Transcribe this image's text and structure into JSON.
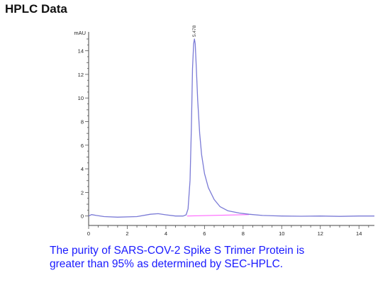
{
  "heading": "HPLC Data",
  "caption": {
    "line1": "The purity of SARS-COV-2 Spike S Trimer Protein is",
    "line2": "greater than 95% as determined by SEC-HPLC."
  },
  "chart_data": {
    "type": "line",
    "title": "",
    "xlabel": "",
    "ylabel": "mAU",
    "xlim": [
      0,
      14.8
    ],
    "ylim": [
      -0.8,
      15.6
    ],
    "x_ticks": [
      0,
      2,
      4,
      6,
      8,
      10,
      12,
      14
    ],
    "y_ticks": [
      0,
      2,
      4,
      6,
      8,
      10,
      12,
      14
    ],
    "peak_label": "5.478",
    "series": [
      {
        "color": "#7a7ad6",
        "x": [
          0,
          0.15,
          0.4,
          0.8,
          1.5,
          2.5,
          3.2,
          3.6,
          4.0,
          4.5,
          4.9,
          5.05,
          5.15,
          5.25,
          5.32,
          5.38,
          5.44,
          5.478,
          5.52,
          5.58,
          5.65,
          5.75,
          5.85,
          6.0,
          6.2,
          6.5,
          6.8,
          7.2,
          7.8,
          8.3,
          9.0,
          10.0,
          11.0,
          12.0,
          13.0,
          14.0,
          14.8
        ],
        "y": [
          0.0,
          0.12,
          0.05,
          -0.05,
          -0.1,
          -0.05,
          0.15,
          0.2,
          0.1,
          0.0,
          0.0,
          0.1,
          0.6,
          3.0,
          7.5,
          12.5,
          14.6,
          15.0,
          14.6,
          12.5,
          9.8,
          7.0,
          5.2,
          3.6,
          2.4,
          1.4,
          0.8,
          0.45,
          0.25,
          0.15,
          0.05,
          0.0,
          -0.02,
          0.0,
          -0.03,
          0.0,
          0.0
        ]
      }
    ],
    "baseline": {
      "color": "#ff66ff",
      "x": [
        5.1,
        8.3
      ],
      "y": [
        0.0,
        0.12
      ]
    },
    "grid": false
  }
}
